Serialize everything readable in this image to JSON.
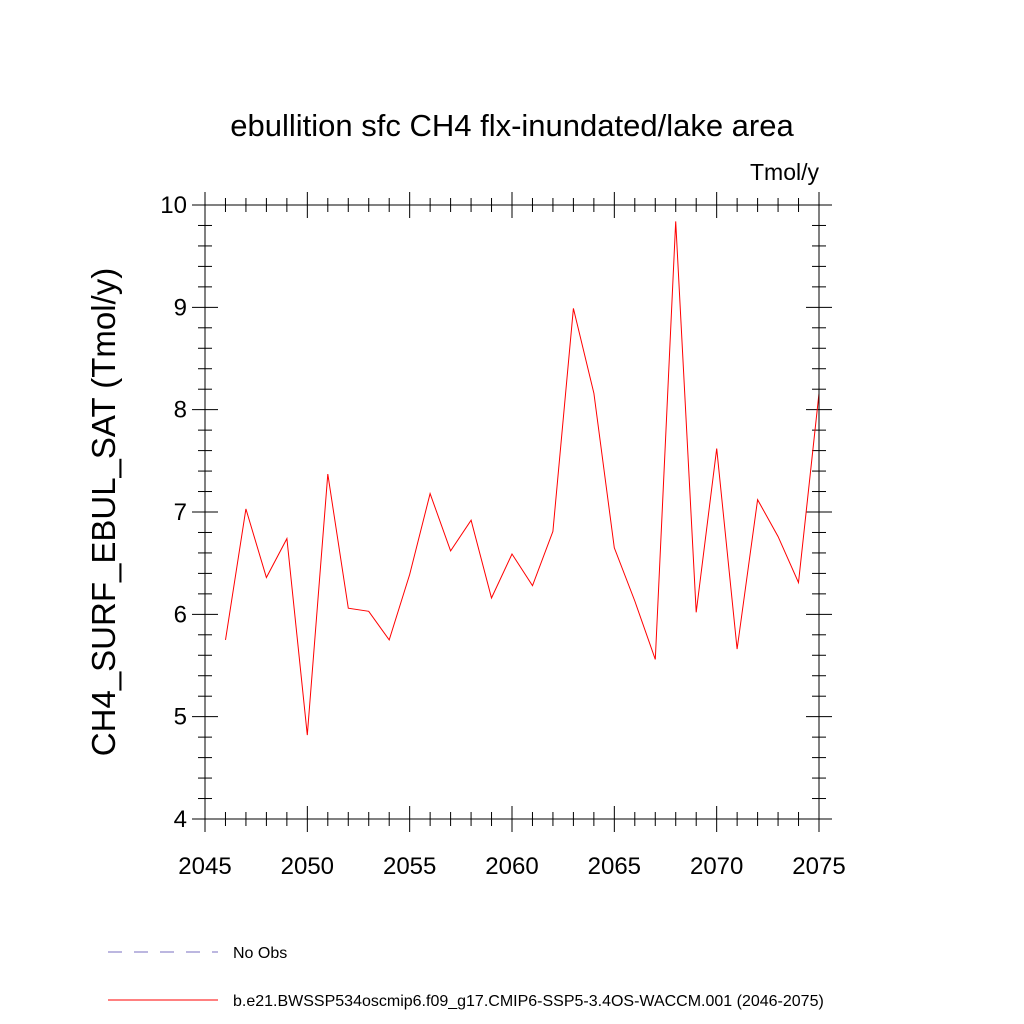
{
  "chart_data": {
    "type": "line",
    "title": "ebullition sfc CH4 flx-inundated/lake area",
    "units_label": "Tmol/y",
    "ylabel": "CH4_SURF_EBUL_SAT  (Tmol/y)",
    "xlabel": "",
    "xlim": [
      2045,
      2075
    ],
    "ylim": [
      4,
      10
    ],
    "x_ticks": [
      2045,
      2050,
      2055,
      2060,
      2065,
      2070,
      2075
    ],
    "x_minor_step": 1,
    "y_ticks": [
      4,
      5,
      6,
      7,
      8,
      9,
      10
    ],
    "y_minor_step": 0.2,
    "grid": false,
    "series": [
      {
        "name": "b.e21.BWSSP534oscmip6.f09_g17.CMIP6-SSP5-3.4OS-WACCM.001 (2046-2075)",
        "color": "#ff0000",
        "x": [
          2046,
          2047,
          2048,
          2049,
          2050,
          2051,
          2052,
          2053,
          2054,
          2055,
          2056,
          2057,
          2058,
          2059,
          2060,
          2061,
          2062,
          2063,
          2064,
          2065,
          2066,
          2067,
          2068,
          2069,
          2070,
          2071,
          2072,
          2073,
          2074,
          2075
        ],
        "values": [
          5.75,
          7.03,
          6.36,
          6.74,
          4.82,
          7.37,
          6.06,
          6.03,
          5.75,
          6.39,
          7.18,
          6.62,
          6.92,
          6.16,
          6.59,
          6.28,
          6.81,
          8.99,
          8.16,
          6.65,
          6.13,
          5.56,
          9.84,
          6.02,
          7.62,
          5.66,
          7.12,
          6.76,
          6.31,
          8.16
        ]
      }
    ],
    "legend": [
      {
        "label": "No Obs",
        "style": "dashed",
        "color": "#7a6fc0"
      },
      {
        "label": "b.e21.BWSSP534oscmip6.f09_g17.CMIP6-SSP5-3.4OS-WACCM.001 (2046-2075)",
        "style": "solid",
        "color": "#ff0000"
      }
    ],
    "legend_position": "bottom-left"
  }
}
